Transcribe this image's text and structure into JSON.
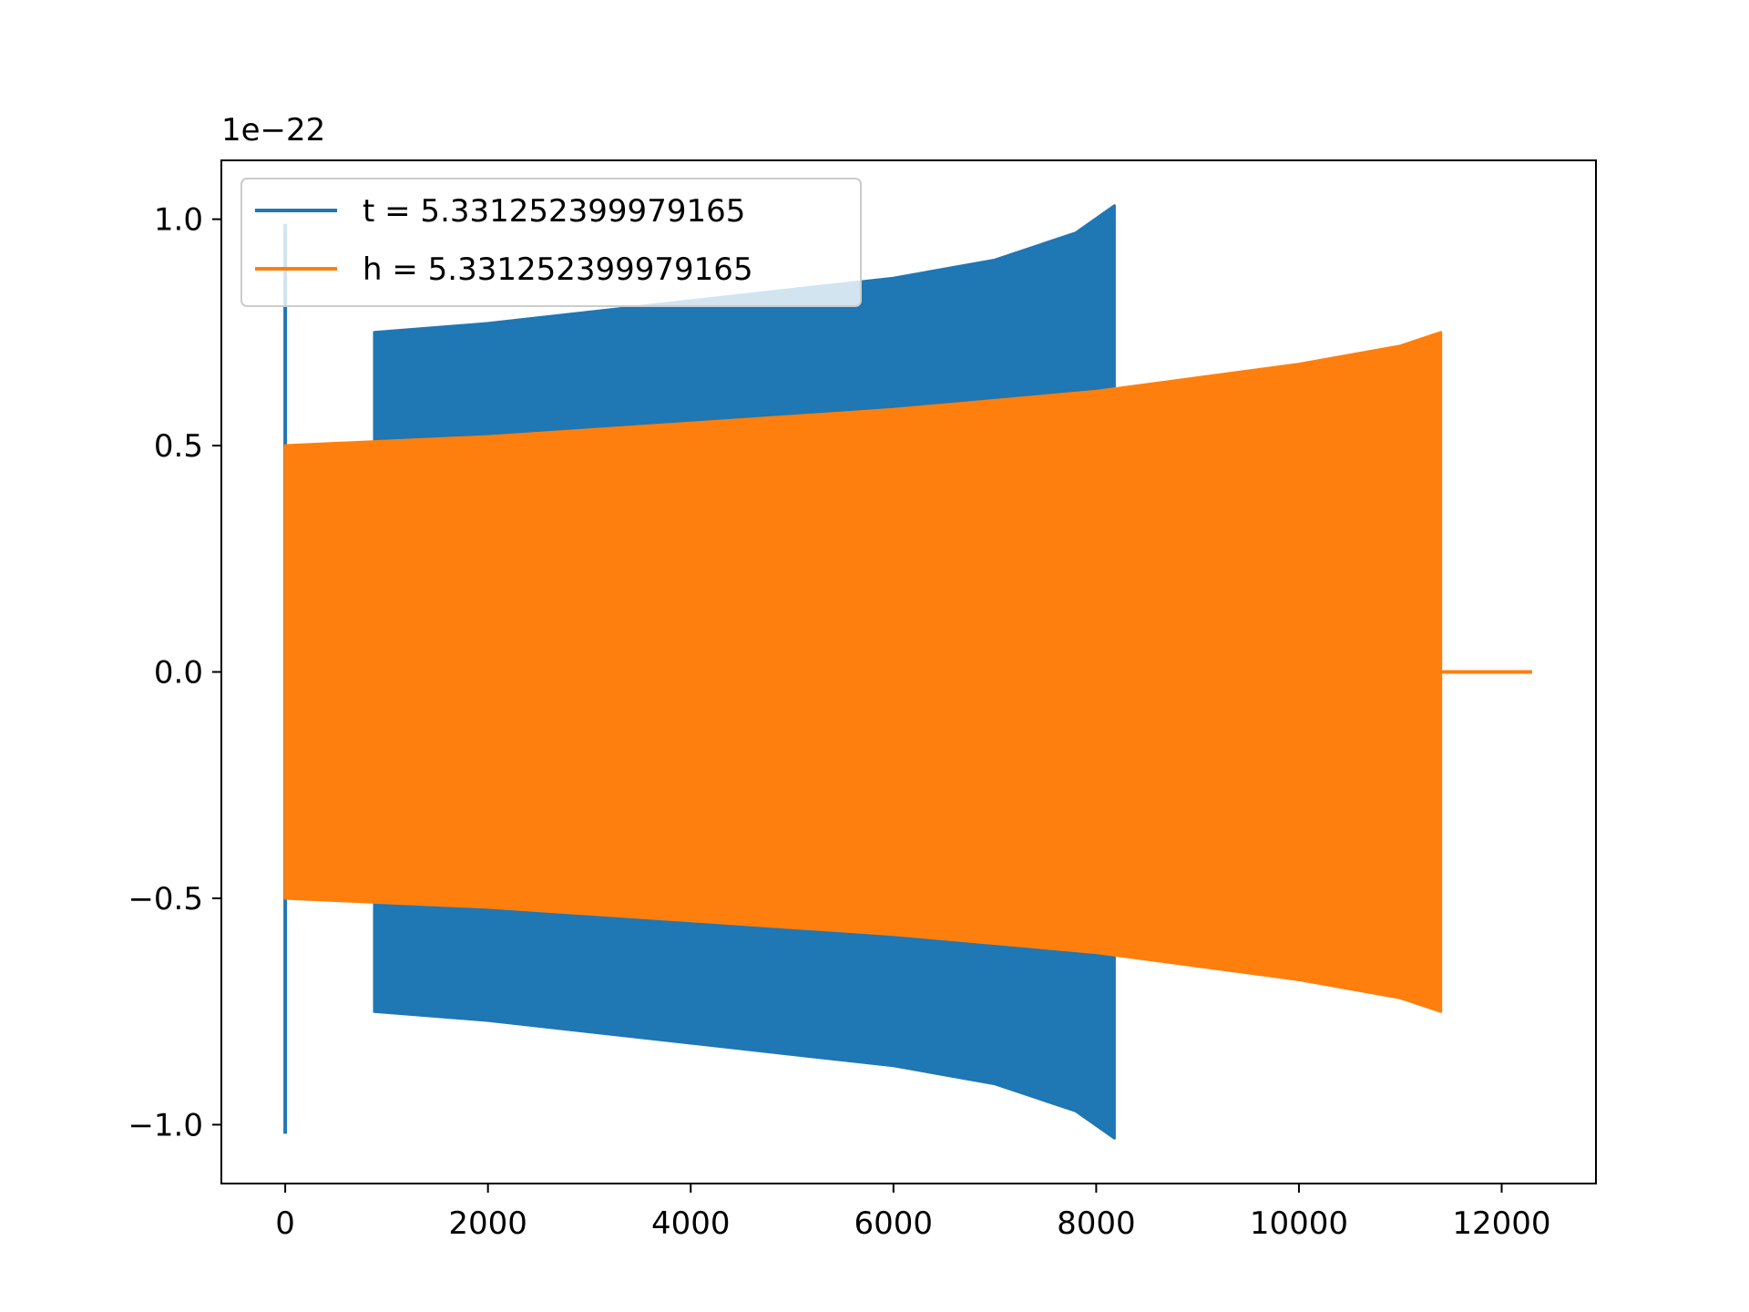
{
  "chart_data": {
    "type": "line",
    "title": "",
    "xlabel": "",
    "ylabel": "",
    "offset_text": "1e−22",
    "xlim": [
      -630,
      12930
    ],
    "ylim": [
      -1.13,
      1.13
    ],
    "x_ticks": [
      0,
      2000,
      4000,
      6000,
      8000,
      10000,
      12000
    ],
    "x_tick_labels": [
      "0",
      "2000",
      "4000",
      "6000",
      "8000",
      "10000",
      "12000"
    ],
    "y_ticks": [
      -1.0,
      -0.5,
      0.0,
      0.5,
      1.0
    ],
    "y_tick_labels": [
      "−1.0",
      "−0.5",
      "0.0",
      "0.5",
      "1.0"
    ],
    "grid": false,
    "legend": {
      "placement": "upper-left"
    },
    "series": [
      {
        "name": "t = 5.331252399979165",
        "color": "#1f77b4",
        "spike": {
          "x": 0,
          "ymax": 0.99,
          "ymin": -1.02
        },
        "envelope_x": [
          880,
          2000,
          4000,
          6000,
          7000,
          7800,
          8180
        ],
        "envelope_upper": [
          0.75,
          0.77,
          0.82,
          0.87,
          0.91,
          0.97,
          1.03
        ],
        "envelope_lower": [
          -0.75,
          -0.77,
          -0.82,
          -0.87,
          -0.91,
          -0.97,
          -1.03
        ]
      },
      {
        "name": "h = 5.331252399979165",
        "color": "#ff7f0e",
        "envelope_x": [
          0,
          2000,
          4000,
          6000,
          8000,
          9000,
          10000,
          11000,
          11400
        ],
        "envelope_upper": [
          0.5,
          0.52,
          0.55,
          0.58,
          0.62,
          0.65,
          0.68,
          0.72,
          0.75
        ],
        "envelope_lower": [
          -0.5,
          -0.52,
          -0.55,
          -0.58,
          -0.62,
          -0.65,
          -0.68,
          -0.72,
          -0.75
        ],
        "tail": {
          "x": [
            11400,
            12300
          ],
          "y": [
            0.0,
            0.0
          ]
        }
      }
    ]
  }
}
